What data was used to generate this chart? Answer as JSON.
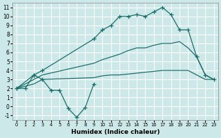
{
  "xlabel": "Humidex (Indice chaleur)",
  "bg_color": "#cce8e8",
  "grid_color": "#ffffff",
  "line_color": "#1a6e6a",
  "xlim": [
    -0.5,
    23.5
  ],
  "ylim": [
    -1.5,
    11.5
  ],
  "xticks": [
    0,
    1,
    2,
    3,
    4,
    5,
    6,
    7,
    8,
    9,
    10,
    11,
    12,
    13,
    14,
    15,
    16,
    17,
    18,
    19,
    20,
    21,
    22,
    23
  ],
  "yticks": [
    -1,
    0,
    1,
    2,
    3,
    4,
    5,
    6,
    7,
    8,
    9,
    10,
    11
  ],
  "series": [
    {
      "x": [
        0,
        2,
        3,
        9,
        10,
        11,
        12,
        13,
        14,
        15,
        16,
        17,
        18,
        19,
        20,
        21,
        22,
        23
      ],
      "y": [
        2.0,
        3.5,
        4.0,
        7.5,
        8.5,
        9.0,
        10.0,
        10.0,
        10.2,
        10.0,
        10.5,
        11.0,
        10.2,
        8.5,
        8.5,
        5.5,
        3.5,
        3.0
      ]
    },
    {
      "x": [
        0,
        2,
        3,
        9,
        10,
        11,
        12,
        13,
        14,
        15,
        16,
        17,
        18,
        19,
        20,
        21,
        22,
        23
      ],
      "y": [
        2.0,
        3.0,
        3.5,
        4.8,
        5.2,
        5.5,
        5.8,
        6.2,
        6.5,
        6.5,
        6.8,
        7.0,
        7.0,
        7.2,
        6.5,
        5.5,
        3.5,
        3.0
      ]
    },
    {
      "x": [
        0,
        2,
        3,
        9,
        10,
        11,
        12,
        13,
        14,
        15,
        16,
        17,
        18,
        19,
        20,
        21,
        22,
        23
      ],
      "y": [
        2.0,
        2.5,
        3.0,
        3.2,
        3.4,
        3.5,
        3.5,
        3.6,
        3.7,
        3.8,
        3.9,
        4.0,
        4.0,
        4.0,
        4.0,
        3.5,
        3.0,
        3.0
      ]
    },
    {
      "x": [
        0,
        1,
        2,
        3,
        4,
        5,
        6,
        7,
        8,
        9
      ],
      "y": [
        2.0,
        2.0,
        3.5,
        3.0,
        1.8,
        1.8,
        -0.2,
        -1.2,
        -0.1,
        2.5
      ]
    }
  ]
}
